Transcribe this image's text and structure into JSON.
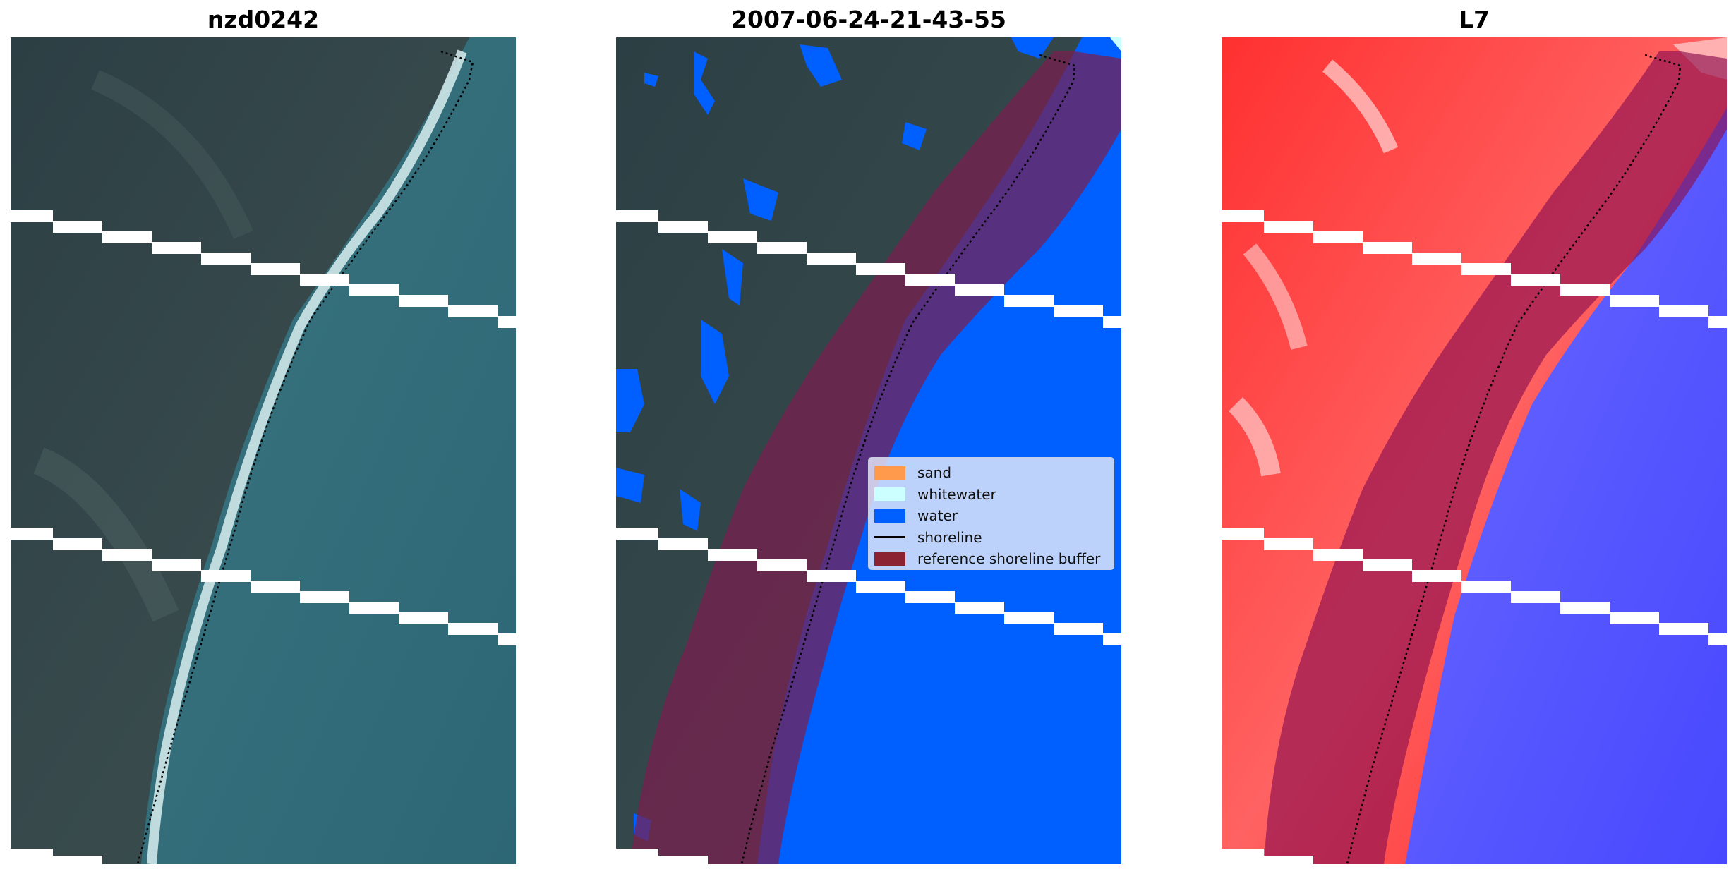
{
  "panels": [
    {
      "title": "nzd0242"
    },
    {
      "title": "2007-06-24-21-43-55"
    },
    {
      "title": "L7"
    }
  ],
  "legend": {
    "items": [
      {
        "label": "sand",
        "color": "#ff9a4d",
        "kind": "patch"
      },
      {
        "label": "whitewater",
        "color": "#ccffff",
        "kind": "patch"
      },
      {
        "label": "water",
        "color": "#005fff",
        "kind": "patch"
      },
      {
        "label": "shoreline",
        "color": "#000000",
        "kind": "line"
      },
      {
        "label": "reference shoreline buffer",
        "color": "#8b2232",
        "kind": "patch"
      }
    ]
  },
  "colors": {
    "land": "#34484a",
    "ocean": "#2f6a78",
    "beach": "#cfe3e6",
    "water_class": "#005fff",
    "buffer": "#7a1f4f",
    "index_red": "#ff2a2a",
    "index_blue": "#5a5aff",
    "stripe": "#ffffff"
  }
}
